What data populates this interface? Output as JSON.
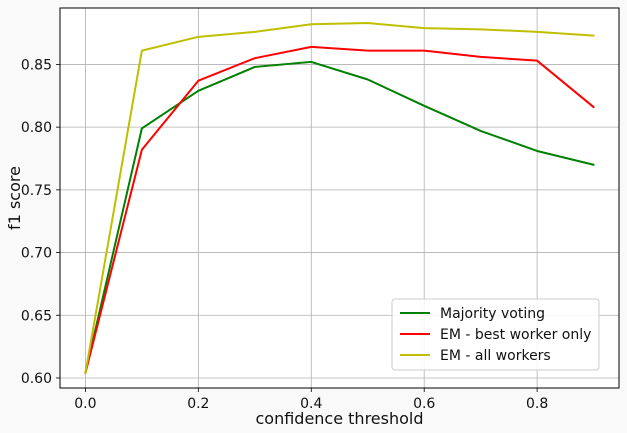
{
  "chart_data": {
    "type": "line",
    "title": "",
    "xlabel": "confidence threshold",
    "ylabel": "f1 score",
    "xlim": [
      -0.045,
      0.945
    ],
    "ylim": [
      0.592,
      0.895
    ],
    "grid": true,
    "legend_position": "lower-right",
    "x_ticks": [
      0.0,
      0.2,
      0.4,
      0.6,
      0.8
    ],
    "x_tick_labels": [
      "0.0",
      "0.2",
      "0.4",
      "0.6",
      "0.8"
    ],
    "y_ticks": [
      0.6,
      0.65,
      0.7,
      0.75,
      0.8,
      0.85
    ],
    "y_tick_labels": [
      "0.60",
      "0.65",
      "0.70",
      "0.75",
      "0.80",
      "0.85"
    ],
    "x": [
      0.0,
      0.1,
      0.2,
      0.3,
      0.4,
      0.5,
      0.6,
      0.7,
      0.8,
      0.9
    ],
    "series": [
      {
        "name": "Majority voting",
        "color": "#008000",
        "values": [
          0.604,
          0.799,
          0.829,
          0.848,
          0.852,
          0.838,
          0.817,
          0.797,
          0.781,
          0.77
        ]
      },
      {
        "name": "EM - best worker only",
        "color": "#ff0000",
        "values": [
          0.604,
          0.782,
          0.837,
          0.855,
          0.864,
          0.861,
          0.861,
          0.856,
          0.853,
          0.816
        ]
      },
      {
        "name": "EM - all workers",
        "color": "#bfbf00",
        "values": [
          0.604,
          0.861,
          0.872,
          0.876,
          0.882,
          0.883,
          0.879,
          0.878,
          0.876,
          0.873
        ]
      }
    ]
  }
}
